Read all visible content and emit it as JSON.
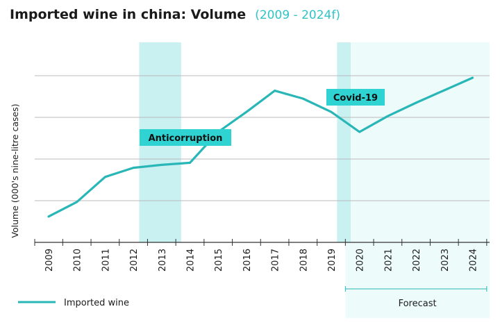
{
  "chart_data": {
    "type": "line",
    "title": "Imported wine in china: Volume",
    "subtitle": "(2009 - 2024f)",
    "ylabel": "Volume (000's nine-litre cases)",
    "xlabel": "",
    "x": [
      "2009",
      "2010",
      "2011",
      "2012",
      "2013",
      "2014",
      "2015",
      "2016",
      "2017",
      "2018",
      "2019",
      "2020",
      "2021",
      "2022",
      "2023",
      "2024"
    ],
    "series": [
      {
        "name": "Imported wine",
        "values": [
          0.62,
          0.97,
          1.57,
          1.79,
          1.86,
          1.91,
          2.65,
          3.13,
          3.64,
          3.45,
          3.13,
          2.65,
          3.03,
          3.35,
          3.65,
          3.95
        ]
      }
    ],
    "ylim": [
      0,
      5
    ],
    "grid": true,
    "highlight_periods": [
      {
        "label": "Anticorruption",
        "range": [
          "2013",
          "2014"
        ]
      },
      {
        "label": "Covid-19",
        "range": [
          "2020",
          "2020"
        ]
      }
    ],
    "forecast": {
      "label": "Forecast",
      "range": [
        "2020",
        "2024"
      ]
    },
    "legend_position": "bottom-left"
  },
  "colors": {
    "line": "#28b6b7",
    "title_sub": "#2ec4c4",
    "band": "#c9f1f2",
    "forecast_bg": "#eefbfb",
    "label_bg": "#2ed3d2",
    "grid": "#b9b9b9",
    "axis": "#333333"
  }
}
